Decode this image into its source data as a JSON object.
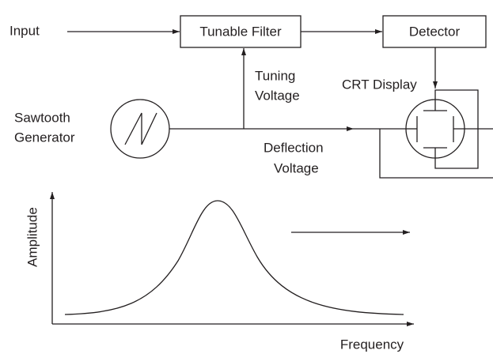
{
  "input_label": "Input",
  "filter_label": "Tunable Filter",
  "detector_label": "Detector",
  "tuning_voltage": [
    "Tuning",
    "Voltage"
  ],
  "crt_label": "CRT Display",
  "sawtooth_generator": [
    "Sawtooth",
    "Generator"
  ],
  "deflection_voltage": [
    "Deflection",
    "Voltage"
  ],
  "graph": {
    "y_label": "Amplitude",
    "x_label": "Frequency"
  }
}
